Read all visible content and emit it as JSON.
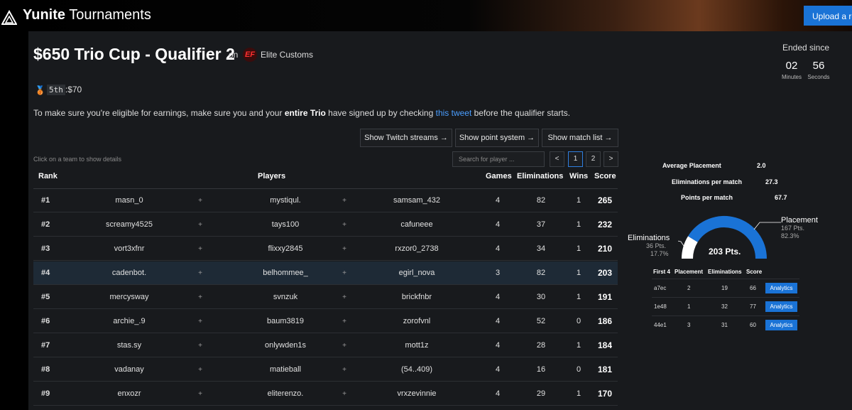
{
  "header": {
    "brand_bold": "Yunite",
    "brand_rest": " Tournaments",
    "upload_label": "Upload a replay"
  },
  "tournament": {
    "title": "$650 Trio Cup - Qualifier 2",
    "on_label": "on",
    "org_logo_text": "EF",
    "org_name": "Elite Customs"
  },
  "countdown": {
    "label": "Ended since",
    "minutes": "02",
    "minutes_label": "Minutes",
    "seconds": "56",
    "seconds_label": "Seconds"
  },
  "prize": {
    "medal_icon": "bronze-medal-icon",
    "place": "5th",
    "amount": ":$70"
  },
  "notice": {
    "part1": "To make sure you're eligible for earnings, make sure you and your ",
    "bold": "entire Trio",
    "part2": " have signed up by checking ",
    "link": "this tweet",
    "part3": " before the qualifier starts."
  },
  "buttons": {
    "twitch": "Show Twitch streams →",
    "points": "Show point system →",
    "matches": "Show match list →"
  },
  "hint": "Click on a team to show details",
  "search": {
    "placeholder": "Search for player ..."
  },
  "pagination": {
    "prev": "<",
    "pages": [
      "1",
      "2"
    ],
    "next": ">"
  },
  "table": {
    "headers": {
      "rank": "Rank",
      "players": "Players",
      "games": "Games",
      "eliminations": "Eliminations",
      "wins": "Wins",
      "score": "Score"
    },
    "plus": "+",
    "rows": [
      {
        "rank": "#1",
        "p1": "masn_0",
        "p2": "mystiqul.",
        "p3": "samsam_432",
        "games": "4",
        "elims": "82",
        "wins": "1",
        "score": "265"
      },
      {
        "rank": "#2",
        "p1": "screamy4525",
        "p2": "tays100",
        "p3": "cafuneee",
        "games": "4",
        "elims": "37",
        "wins": "1",
        "score": "232"
      },
      {
        "rank": "#3",
        "p1": "vort3xfnr",
        "p2": "flixxy2845",
        "p3": "rxzor0_2738",
        "games": "4",
        "elims": "34",
        "wins": "1",
        "score": "210"
      },
      {
        "rank": "#4",
        "p1": "cadenbot.",
        "p2": "belhommee_",
        "p3": "egirl_nova",
        "games": "3",
        "elims": "82",
        "wins": "1",
        "score": "203"
      },
      {
        "rank": "#5",
        "p1": "mercysway",
        "p2": "svnzuk",
        "p3": "brickfnbr",
        "games": "4",
        "elims": "30",
        "wins": "1",
        "score": "191"
      },
      {
        "rank": "#6",
        "p1": "archie_.9",
        "p2": "baum3819",
        "p3": "zorofvnl",
        "games": "4",
        "elims": "52",
        "wins": "0",
        "score": "186"
      },
      {
        "rank": "#7",
        "p1": "stas.sy",
        "p2": "onlywden1s",
        "p3": "mott1z",
        "games": "4",
        "elims": "28",
        "wins": "1",
        "score": "184"
      },
      {
        "rank": "#8",
        "p1": "vadanay",
        "p2": "matieball",
        "p3": "(54..409)",
        "games": "4",
        "elims": "16",
        "wins": "0",
        "score": "181"
      },
      {
        "rank": "#9",
        "p1": "enxozr",
        "p2": "eliterenzo.",
        "p3": "vrxzevinnie",
        "games": "4",
        "elims": "29",
        "wins": "1",
        "score": "170"
      }
    ]
  },
  "details": {
    "avg_placement_label": "Average Placement",
    "avg_placement": "2.0",
    "elims_per_match_label": "Eliminations per match",
    "elims_per_match": "27.3",
    "points_per_match_label": "Points per match",
    "points_per_match": "67.7",
    "gauge": {
      "total": "203 Pts.",
      "placement_label": "Placement",
      "placement_pts": "167 Pts.",
      "placement_pct": "82.3%",
      "elims_label": "Eliminations",
      "elims_pts": "36 Pts.",
      "elims_pct": "17.7%",
      "placement_fraction": 0.823,
      "color_placement": "#1a73d6",
      "color_elims": "#ffffff"
    },
    "matches": {
      "headers": {
        "id": "First 4",
        "placement": "Placement",
        "elims": "Eliminations",
        "score": "Score"
      },
      "analytics_label": "Analytics",
      "rows": [
        {
          "id": "a7ec",
          "placement": "2",
          "elims": "19",
          "score": "66"
        },
        {
          "id": "1e48",
          "placement": "1",
          "elims": "32",
          "score": "77"
        },
        {
          "id": "44e1",
          "placement": "3",
          "elims": "31",
          "score": "60"
        }
      ]
    }
  }
}
